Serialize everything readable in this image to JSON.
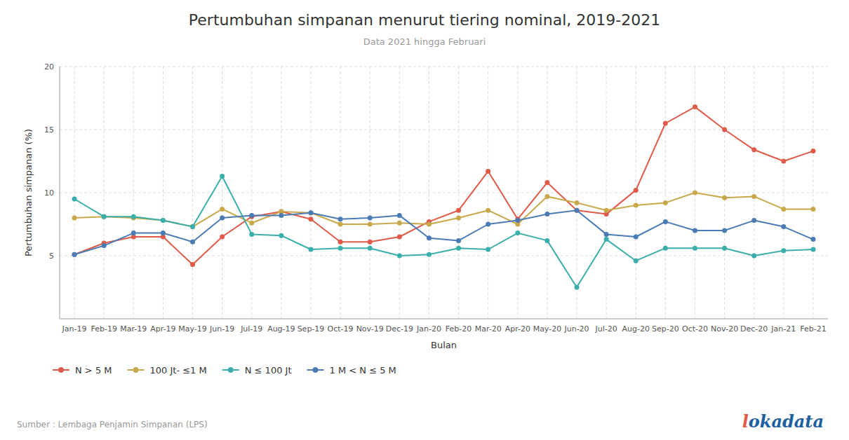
{
  "chart_data": {
    "type": "line",
    "title": "Pertumbuhan simpanan menurut tiering nominal, 2019-2021",
    "subtitle": "Data 2021 hingga Februari",
    "x_label": "Bulan",
    "y_label": "Pertumbuhan simpanan (%)",
    "source": "Sumber : Lembaga Penjamin Simpanan (LPS)",
    "logo": "lokadata",
    "categories": [
      "Jan-19",
      "Feb-19",
      "Mar-19",
      "Apr-19",
      "May-19",
      "Jun-19",
      "Jul-19",
      "Aug-19",
      "Sep-19",
      "Oct-19",
      "Nov-19",
      "Dec-19",
      "Jan-20",
      "Feb-20",
      "Mar-20",
      "Apr-20",
      "May-20",
      "Jun-20",
      "Jul-20",
      "Aug-20",
      "Sep-20",
      "Oct-20",
      "Nov-20",
      "Dec-20",
      "Jan-21",
      "Feb-21"
    ],
    "series": [
      {
        "name": "N > 5 M",
        "color": "#E05A4A",
        "values": [
          5.1,
          6.0,
          6.5,
          6.5,
          4.3,
          6.5,
          8.1,
          8.5,
          7.9,
          6.1,
          6.1,
          6.5,
          7.7,
          8.6,
          11.7,
          7.9,
          10.8,
          8.6,
          8.3,
          10.2,
          15.5,
          16.8,
          15.0,
          13.4,
          12.5,
          13.3
        ]
      },
      {
        "name": "100 Jt- ≤1 M",
        "color": "#C9A84C",
        "values": [
          8.0,
          8.1,
          8.0,
          7.8,
          7.3,
          8.7,
          7.6,
          8.5,
          8.4,
          7.5,
          7.5,
          7.6,
          7.5,
          8.0,
          8.6,
          7.5,
          9.7,
          9.2,
          8.6,
          9.0,
          9.2,
          10.0,
          9.6,
          9.7,
          8.7,
          8.7
        ]
      },
      {
        "name": "N ≤ 100 Jt",
        "color": "#3AAEAA",
        "values": [
          9.5,
          8.1,
          8.1,
          7.8,
          7.3,
          11.3,
          6.7,
          6.6,
          5.5,
          5.6,
          5.6,
          5.0,
          5.1,
          5.6,
          5.5,
          6.8,
          6.2,
          2.5,
          6.3,
          4.6,
          5.6,
          5.6,
          5.6,
          5.0,
          5.4,
          5.5
        ]
      },
      {
        "name": "1 M < N ≤ 5 M",
        "color": "#4A7BB5",
        "values": [
          5.1,
          5.8,
          6.8,
          6.8,
          6.1,
          8.0,
          8.2,
          8.2,
          8.4,
          7.9,
          8.0,
          8.2,
          6.4,
          6.2,
          7.5,
          7.8,
          8.3,
          8.6,
          6.7,
          6.5,
          7.7,
          7.0,
          7.0,
          7.8,
          7.3,
          6.3
        ]
      }
    ],
    "ylim": [
      0,
      20
    ],
    "yticks": [
      5,
      10,
      15,
      20
    ],
    "grid": true,
    "legend": "bottom",
    "marker": "circle"
  }
}
